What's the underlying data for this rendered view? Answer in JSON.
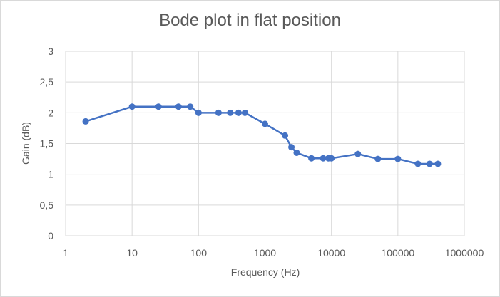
{
  "chart_data": {
    "type": "line",
    "title": "Bode plot in flat position",
    "xlabel": "Frequency (Hz)",
    "ylabel": "Gain (dB)",
    "x_scale": "log",
    "xlim": [
      1,
      1000000
    ],
    "ylim": [
      0,
      3
    ],
    "x_ticks": [
      1,
      10,
      100,
      1000,
      10000,
      100000,
      1000000
    ],
    "x_tick_labels": [
      "1",
      "10",
      "100",
      "1000",
      "10000",
      "100000",
      "1000000"
    ],
    "y_ticks": [
      0,
      0.5,
      1,
      1.5,
      2,
      2.5,
      3
    ],
    "y_tick_labels": [
      "0",
      "0,5",
      "1",
      "1,5",
      "2",
      "2,5",
      "3"
    ],
    "grid": true,
    "legend": "none",
    "series": [
      {
        "color": "#4472c4",
        "x": [
          2,
          10,
          25,
          50,
          75,
          100,
          200,
          300,
          400,
          500,
          1000,
          2000,
          2500,
          3000,
          5000,
          7500,
          9000,
          10000,
          25000,
          50000,
          100000,
          200000,
          300000,
          400000
        ],
        "y": [
          1.86,
          2.1,
          2.1,
          2.1,
          2.1,
          2.0,
          2.0,
          2.0,
          2.0,
          2.0,
          1.82,
          1.63,
          1.44,
          1.35,
          1.26,
          1.26,
          1.26,
          1.26,
          1.33,
          1.25,
          1.25,
          1.17,
          1.17,
          1.17
        ]
      }
    ]
  }
}
